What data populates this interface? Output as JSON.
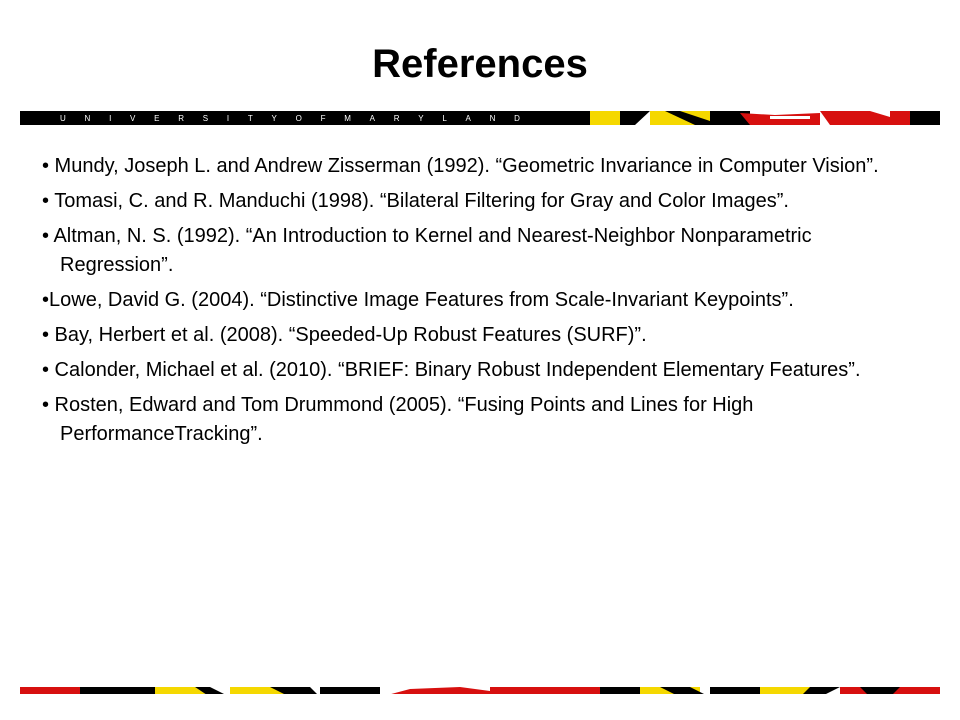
{
  "slide": {
    "title": "References",
    "banner": {
      "wordmark": [
        "U",
        "N",
        "I",
        "V",
        "E",
        "R",
        "S",
        "I",
        "T",
        "Y",
        "O",
        "F",
        "M",
        "A",
        "R",
        "Y",
        "L",
        "A",
        "N",
        "D"
      ],
      "colors": {
        "black": "#000000",
        "yellow": "#f5d800",
        "red": "#d7100f",
        "white": "#ffffff"
      }
    },
    "references": [
      "• Mundy, Joseph L. and Andrew Zisserman (1992). “Geometric Invariance in Computer Vision”.",
      "• Tomasi, C. and R. Manduchi (1998). “Bilateral Filtering for Gray and Color Images”.",
      "• Altman, N. S. (1992). “An Introduction to Kernel and Nearest-Neighbor Nonparametric Regression”.",
      "•Lowe, David G. (2004). “Distinctive Image Features from Scale-Invariant Keypoints”.",
      "• Bay, Herbert et al. (2008). “Speeded-Up Robust Features (SURF)”.",
      "• Calonder, Michael et al. (2010). “BRIEF: Binary Robust Independent Elementary Features”.",
      "• Rosten, Edward and Tom Drummond (2005). “Fusing Points and Lines for High PerformanceTracking”."
    ]
  }
}
